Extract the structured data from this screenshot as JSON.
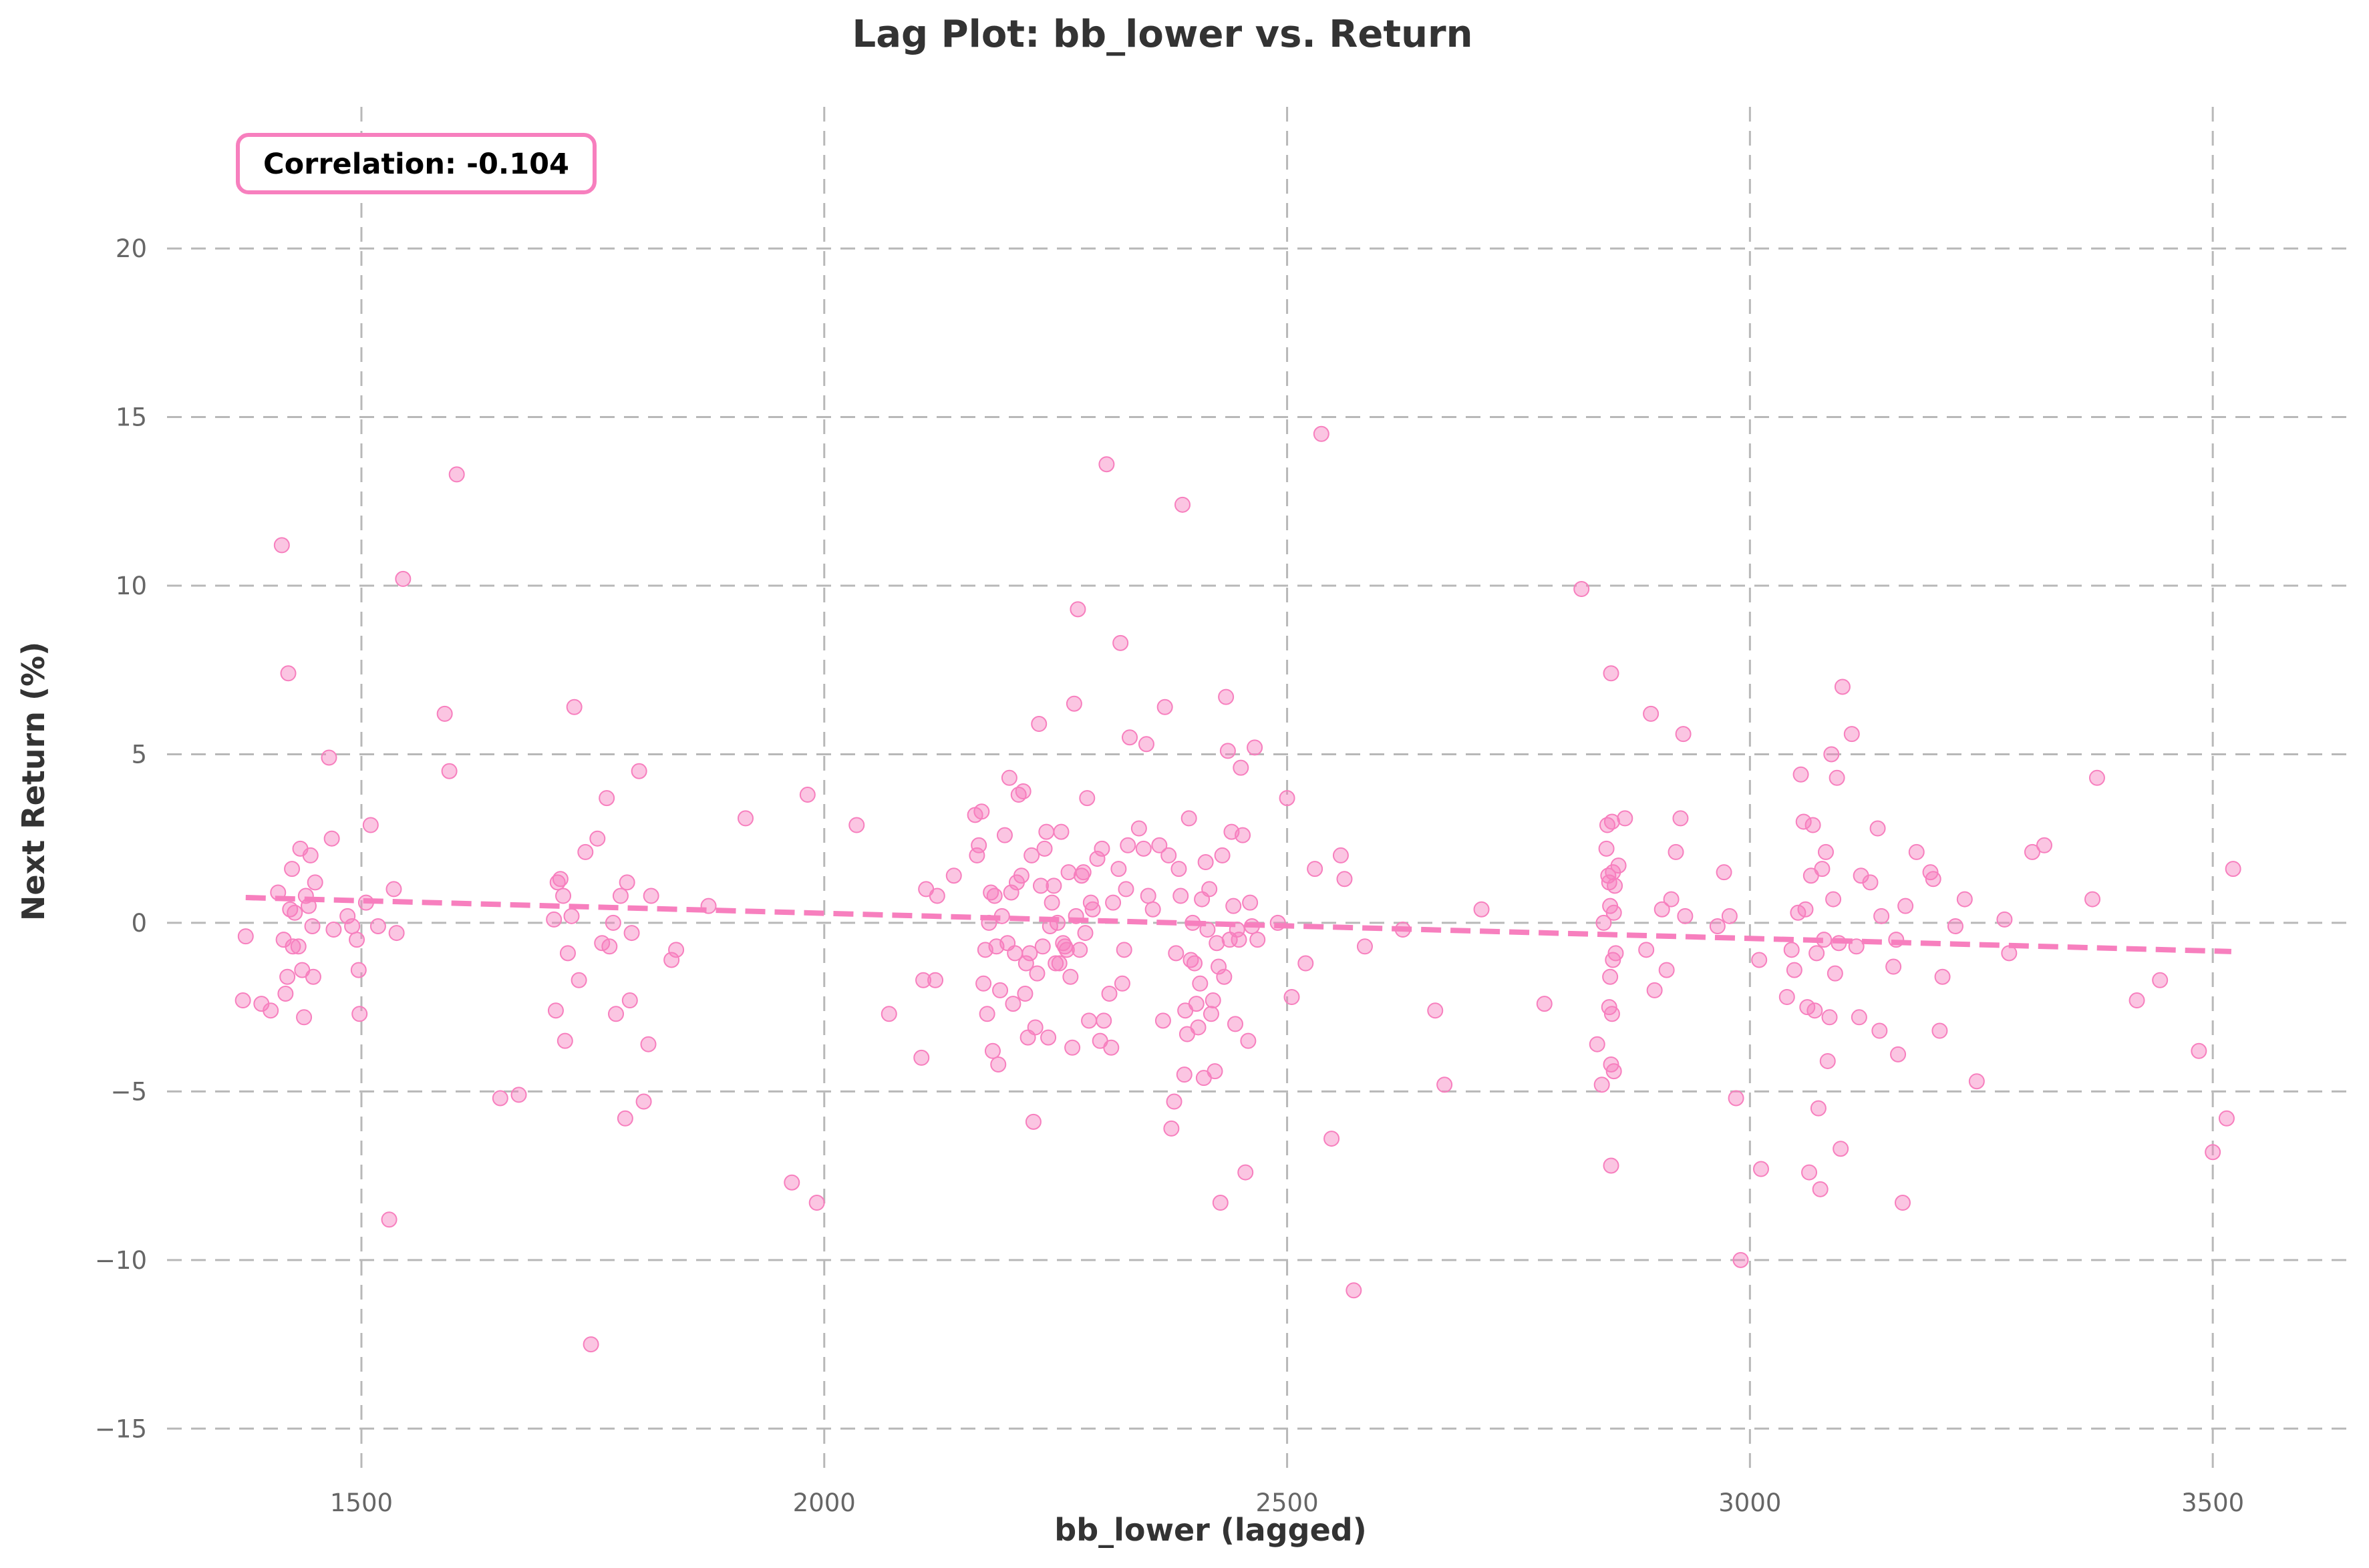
{
  "chart_data": {
    "type": "scatter",
    "title": "Lag Plot: bb_lower vs. Return",
    "xlabel": "bb_lower (lagged)",
    "ylabel": "Next Return (%)",
    "xlim": [
      1290,
      3650
    ],
    "ylim": [
      -16.4,
      24.2
    ],
    "xticks": [
      1500,
      2000,
      2500,
      3000,
      3500
    ],
    "yticks": [
      -15,
      -10,
      -5,
      0,
      5,
      10,
      15,
      20
    ],
    "xtick_labels": [
      "1500",
      "2000",
      "2500",
      "3000",
      "3500"
    ],
    "ytick_labels": [
      "−15",
      "−10",
      "−5",
      "0",
      "5",
      "10",
      "15",
      "20"
    ],
    "grid": true,
    "annotation": {
      "text": "Correlation: -0.104",
      "placement": "top-left"
    },
    "colors": {
      "points": "#f77fbe",
      "trend": "#f77fbe",
      "annotation_border": "#f77fbe",
      "grid": "#b8b8b8",
      "text": "#333333",
      "tick": "#666666"
    },
    "trend_line": {
      "x": [
        1375,
        3520
      ],
      "y": [
        0.75,
        -0.85
      ]
    },
    "points": [
      [
        1375,
        -0.4
      ],
      [
        1372,
        -2.3
      ],
      [
        1392,
        -2.4
      ],
      [
        1402,
        -2.6
      ],
      [
        1410,
        0.9
      ],
      [
        1414,
        11.2
      ],
      [
        1416,
        -0.5
      ],
      [
        1418,
        -2.1
      ],
      [
        1420,
        -1.6
      ],
      [
        1421,
        7.4
      ],
      [
        1423,
        0.4
      ],
      [
        1425,
        1.6
      ],
      [
        1426,
        -0.7
      ],
      [
        1428,
        0.3
      ],
      [
        1432,
        -0.7
      ],
      [
        1434,
        2.2
      ],
      [
        1436,
        -1.4
      ],
      [
        1438,
        -2.8
      ],
      [
        1440,
        0.8
      ],
      [
        1443,
        0.5
      ],
      [
        1445,
        2.0
      ],
      [
        1447,
        -0.1
      ],
      [
        1448,
        -1.6
      ],
      [
        1450,
        1.2
      ],
      [
        1465,
        4.9
      ],
      [
        1468,
        2.5
      ],
      [
        1470,
        -0.2
      ],
      [
        1485,
        0.2
      ],
      [
        1490,
        -0.1
      ],
      [
        1495,
        -0.5
      ],
      [
        1497,
        -1.4
      ],
      [
        1498,
        -2.7
      ],
      [
        1505,
        0.6
      ],
      [
        1510,
        2.9
      ],
      [
        1518,
        -0.1
      ],
      [
        1530,
        -8.8
      ],
      [
        1535,
        1.0
      ],
      [
        1538,
        -0.3
      ],
      [
        1545,
        10.2
      ],
      [
        1590,
        6.2
      ],
      [
        1595,
        4.5
      ],
      [
        1603,
        13.3
      ],
      [
        1650,
        -5.2
      ],
      [
        1670,
        -5.1
      ],
      [
        1708,
        0.1
      ],
      [
        1710,
        -2.6
      ],
      [
        1712,
        1.2
      ],
      [
        1715,
        1.3
      ],
      [
        1718,
        0.8
      ],
      [
        1720,
        -3.5
      ],
      [
        1723,
        -0.9
      ],
      [
        1727,
        0.2
      ],
      [
        1730,
        6.4
      ],
      [
        1735,
        -1.7
      ],
      [
        1742,
        2.1
      ],
      [
        1748,
        -12.5
      ],
      [
        1755,
        2.5
      ],
      [
        1760,
        -0.6
      ],
      [
        1765,
        3.7
      ],
      [
        1768,
        -0.7
      ],
      [
        1772,
        0.0
      ],
      [
        1775,
        -2.7
      ],
      [
        1780,
        0.8
      ],
      [
        1785,
        -5.8
      ],
      [
        1787,
        1.2
      ],
      [
        1790,
        -2.3
      ],
      [
        1792,
        -0.3
      ],
      [
        1800,
        4.5
      ],
      [
        1805,
        -5.3
      ],
      [
        1810,
        -3.6
      ],
      [
        1813,
        0.8
      ],
      [
        1835,
        -1.1
      ],
      [
        1840,
        -0.8
      ],
      [
        1875,
        0.5
      ],
      [
        1915,
        3.1
      ],
      [
        1965,
        -7.7
      ],
      [
        1982,
        3.8
      ],
      [
        1992,
        -8.3
      ],
      [
        2035,
        2.9
      ],
      [
        2070,
        -2.7
      ],
      [
        2105,
        -4.0
      ],
      [
        2107,
        -1.7
      ],
      [
        2110,
        1.0
      ],
      [
        2120,
        -1.7
      ],
      [
        2122,
        0.8
      ],
      [
        2140,
        1.4
      ],
      [
        2163,
        3.2
      ],
      [
        2165,
        2.0
      ],
      [
        2167,
        2.3
      ],
      [
        2170,
        3.3
      ],
      [
        2172,
        -1.8
      ],
      [
        2174,
        -0.8
      ],
      [
        2176,
        -2.7
      ],
      [
        2178,
        0.0
      ],
      [
        2180,
        0.9
      ],
      [
        2182,
        -3.8
      ],
      [
        2184,
        0.8
      ],
      [
        2186,
        -0.7
      ],
      [
        2188,
        -4.2
      ],
      [
        2190,
        -2.0
      ],
      [
        2192,
        0.2
      ],
      [
        2195,
        2.6
      ],
      [
        2198,
        -0.6
      ],
      [
        2200,
        4.3
      ],
      [
        2202,
        0.9
      ],
      [
        2204,
        -2.4
      ],
      [
        2206,
        -0.9
      ],
      [
        2208,
        1.2
      ],
      [
        2210,
        3.8
      ],
      [
        2213,
        1.4
      ],
      [
        2215,
        3.9
      ],
      [
        2217,
        -2.1
      ],
      [
        2218,
        -1.2
      ],
      [
        2220,
        -3.4
      ],
      [
        2222,
        -0.9
      ],
      [
        2224,
        2.0
      ],
      [
        2226,
        -5.9
      ],
      [
        2228,
        -3.1
      ],
      [
        2230,
        -1.5
      ],
      [
        2232,
        5.9
      ],
      [
        2234,
        1.1
      ],
      [
        2236,
        -0.7
      ],
      [
        2238,
        2.2
      ],
      [
        2240,
        2.7
      ],
      [
        2242,
        -3.4
      ],
      [
        2244,
        -0.1
      ],
      [
        2246,
        0.6
      ],
      [
        2248,
        1.1
      ],
      [
        2250,
        -1.2
      ],
      [
        2252,
        0.0
      ],
      [
        2254,
        -1.2
      ],
      [
        2256,
        2.7
      ],
      [
        2258,
        -0.6
      ],
      [
        2260,
        -0.7
      ],
      [
        2262,
        -0.8
      ],
      [
        2264,
        1.5
      ],
      [
        2266,
        -1.6
      ],
      [
        2268,
        -3.7
      ],
      [
        2270,
        6.5
      ],
      [
        2272,
        0.2
      ],
      [
        2274,
        9.3
      ],
      [
        2276,
        -0.8
      ],
      [
        2278,
        1.4
      ],
      [
        2280,
        1.5
      ],
      [
        2282,
        -0.3
      ],
      [
        2284,
        3.7
      ],
      [
        2286,
        -2.9
      ],
      [
        2288,
        0.6
      ],
      [
        2290,
        0.4
      ],
      [
        2295,
        1.9
      ],
      [
        2298,
        -3.5
      ],
      [
        2300,
        2.2
      ],
      [
        2302,
        -2.9
      ],
      [
        2305,
        13.6
      ],
      [
        2308,
        -2.1
      ],
      [
        2310,
        -3.7
      ],
      [
        2312,
        0.6
      ],
      [
        2318,
        1.6
      ],
      [
        2320,
        8.3
      ],
      [
        2322,
        -1.8
      ],
      [
        2324,
        -0.8
      ],
      [
        2326,
        1.0
      ],
      [
        2328,
        2.3
      ],
      [
        2330,
        5.5
      ],
      [
        2340,
        2.8
      ],
      [
        2345,
        2.2
      ],
      [
        2348,
        5.3
      ],
      [
        2350,
        0.8
      ],
      [
        2355,
        0.4
      ],
      [
        2362,
        2.3
      ],
      [
        2366,
        -2.9
      ],
      [
        2368,
        6.4
      ],
      [
        2372,
        2.0
      ],
      [
        2375,
        -6.1
      ],
      [
        2378,
        -5.3
      ],
      [
        2380,
        -0.9
      ],
      [
        2383,
        1.6
      ],
      [
        2385,
        0.8
      ],
      [
        2387,
        12.4
      ],
      [
        2389,
        -4.5
      ],
      [
        2390,
        -2.6
      ],
      [
        2392,
        -3.3
      ],
      [
        2394,
        3.1
      ],
      [
        2396,
        -1.1
      ],
      [
        2398,
        0.0
      ],
      [
        2400,
        -1.2
      ],
      [
        2402,
        -2.4
      ],
      [
        2404,
        -3.1
      ],
      [
        2406,
        -1.8
      ],
      [
        2408,
        0.7
      ],
      [
        2410,
        -4.6
      ],
      [
        2412,
        1.8
      ],
      [
        2414,
        -0.2
      ],
      [
        2416,
        1.0
      ],
      [
        2418,
        -2.7
      ],
      [
        2420,
        -2.3
      ],
      [
        2422,
        -4.4
      ],
      [
        2424,
        -0.6
      ],
      [
        2426,
        -1.3
      ],
      [
        2428,
        -8.3
      ],
      [
        2430,
        2.0
      ],
      [
        2432,
        -1.6
      ],
      [
        2434,
        6.7
      ],
      [
        2436,
        5.1
      ],
      [
        2438,
        -0.5
      ],
      [
        2440,
        2.7
      ],
      [
        2442,
        0.5
      ],
      [
        2444,
        -3.0
      ],
      [
        2446,
        -0.2
      ],
      [
        2448,
        -0.5
      ],
      [
        2450,
        4.6
      ],
      [
        2452,
        2.6
      ],
      [
        2455,
        -7.4
      ],
      [
        2458,
        -3.5
      ],
      [
        2460,
        0.6
      ],
      [
        2462,
        -0.1
      ],
      [
        2465,
        5.2
      ],
      [
        2468,
        -0.5
      ],
      [
        2490,
        0.0
      ],
      [
        2500,
        3.7
      ],
      [
        2505,
        -2.2
      ],
      [
        2520,
        -1.2
      ],
      [
        2530,
        1.6
      ],
      [
        2537,
        14.5
      ],
      [
        2548,
        -6.4
      ],
      [
        2558,
        2.0
      ],
      [
        2562,
        1.3
      ],
      [
        2572,
        -10.9
      ],
      [
        2584,
        -0.7
      ],
      [
        2625,
        -0.2
      ],
      [
        2660,
        -2.6
      ],
      [
        2670,
        -4.8
      ],
      [
        2710,
        0.4
      ],
      [
        2778,
        -2.4
      ],
      [
        2818,
        9.9
      ],
      [
        2835,
        -3.6
      ],
      [
        2840,
        -4.8
      ],
      [
        2842,
        0.0
      ],
      [
        2845,
        2.2
      ],
      [
        2846,
        2.9
      ],
      [
        2847,
        1.4
      ],
      [
        2848,
        1.2
      ],
      [
        2848,
        -2.5
      ],
      [
        2849,
        0.5
      ],
      [
        2849,
        -1.6
      ],
      [
        2850,
        7.4
      ],
      [
        2850,
        -4.2
      ],
      [
        2850,
        -7.2
      ],
      [
        2851,
        3.0
      ],
      [
        2851,
        -2.7
      ],
      [
        2852,
        1.5
      ],
      [
        2852,
        -1.1
      ],
      [
        2853,
        0.3
      ],
      [
        2853,
        -4.4
      ],
      [
        2854,
        1.1
      ],
      [
        2855,
        -0.9
      ],
      [
        2858,
        1.7
      ],
      [
        2865,
        3.1
      ],
      [
        2888,
        -0.8
      ],
      [
        2893,
        6.2
      ],
      [
        2897,
        -2.0
      ],
      [
        2905,
        0.4
      ],
      [
        2910,
        -1.4
      ],
      [
        2915,
        0.7
      ],
      [
        2920,
        2.1
      ],
      [
        2925,
        3.1
      ],
      [
        2928,
        5.6
      ],
      [
        2930,
        0.2
      ],
      [
        2965,
        -0.1
      ],
      [
        2972,
        1.5
      ],
      [
        2978,
        0.2
      ],
      [
        2985,
        -5.2
      ],
      [
        2990,
        -10.0
      ],
      [
        3010,
        -1.1
      ],
      [
        3012,
        -7.3
      ],
      [
        3040,
        -2.2
      ],
      [
        3045,
        -0.8
      ],
      [
        3048,
        -1.4
      ],
      [
        3052,
        0.3
      ],
      [
        3055,
        4.4
      ],
      [
        3058,
        3.0
      ],
      [
        3060,
        0.4
      ],
      [
        3062,
        -2.5
      ],
      [
        3064,
        -7.4
      ],
      [
        3066,
        1.4
      ],
      [
        3068,
        2.9
      ],
      [
        3070,
        -2.6
      ],
      [
        3072,
        -0.9
      ],
      [
        3074,
        -5.5
      ],
      [
        3076,
        -7.9
      ],
      [
        3078,
        1.6
      ],
      [
        3080,
        -0.5
      ],
      [
        3082,
        2.1
      ],
      [
        3084,
        -4.1
      ],
      [
        3086,
        -2.8
      ],
      [
        3088,
        5.0
      ],
      [
        3090,
        0.7
      ],
      [
        3092,
        -1.5
      ],
      [
        3094,
        4.3
      ],
      [
        3096,
        -0.6
      ],
      [
        3098,
        -6.7
      ],
      [
        3100,
        7.0
      ],
      [
        3110,
        5.6
      ],
      [
        3115,
        -0.7
      ],
      [
        3118,
        -2.8
      ],
      [
        3120,
        1.4
      ],
      [
        3130,
        1.2
      ],
      [
        3138,
        2.8
      ],
      [
        3140,
        -3.2
      ],
      [
        3142,
        0.2
      ],
      [
        3155,
        -1.3
      ],
      [
        3158,
        -0.5
      ],
      [
        3160,
        -3.9
      ],
      [
        3165,
        -8.3
      ],
      [
        3168,
        0.5
      ],
      [
        3180,
        2.1
      ],
      [
        3195,
        1.5
      ],
      [
        3198,
        1.3
      ],
      [
        3205,
        -3.2
      ],
      [
        3208,
        -1.6
      ],
      [
        3222,
        -0.1
      ],
      [
        3232,
        0.7
      ],
      [
        3245,
        -4.7
      ],
      [
        3275,
        0.1
      ],
      [
        3280,
        -0.9
      ],
      [
        3305,
        2.1
      ],
      [
        3318,
        2.3
      ],
      [
        3370,
        0.7
      ],
      [
        3375,
        4.3
      ],
      [
        3418,
        -2.3
      ],
      [
        3443,
        -1.7
      ],
      [
        3485,
        -3.8
      ],
      [
        3500,
        -6.8
      ],
      [
        3515,
        -5.8
      ],
      [
        3522,
        1.6
      ]
    ]
  }
}
